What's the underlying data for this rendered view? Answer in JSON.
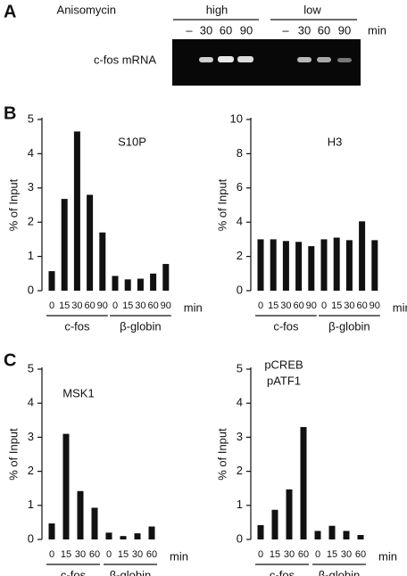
{
  "panel_labels": [
    "A",
    "B",
    "C"
  ],
  "gel": {
    "treatment": "Anisomycin",
    "conditions": [
      {
        "name": "high",
        "lanes": [
          "–",
          "30",
          "60",
          "90"
        ]
      },
      {
        "name": "low",
        "lanes": [
          "–",
          "30",
          "60",
          "90"
        ]
      }
    ],
    "unit": "min",
    "row_label": "c-fos mRNA"
  },
  "chart_data": [
    {
      "type": "bar",
      "title": "S10P",
      "ylabel": "% of Input",
      "x_unit": "min",
      "color": "#111111",
      "ylim": [
        0,
        5
      ],
      "yticks": [
        0,
        1,
        2,
        3,
        4,
        5
      ],
      "groups": [
        {
          "name": "c-fos",
          "categories": [
            "0",
            "15",
            "30",
            "60",
            "90"
          ],
          "values": [
            0.57,
            2.68,
            4.65,
            2.8,
            1.7
          ]
        },
        {
          "name": "β-globin",
          "categories": [
            "0",
            "15",
            "30",
            "60",
            "90"
          ],
          "values": [
            0.43,
            0.33,
            0.35,
            0.5,
            0.78
          ]
        }
      ]
    },
    {
      "type": "bar",
      "title": "H3",
      "ylabel": "% of Input",
      "x_unit": "min",
      "color": "#111111",
      "ylim": [
        0,
        10
      ],
      "yticks": [
        0,
        2,
        4,
        6,
        8,
        10
      ],
      "groups": [
        {
          "name": "c-fos",
          "categories": [
            "0",
            "15",
            "30",
            "60",
            "90"
          ],
          "values": [
            3.0,
            3.0,
            2.9,
            2.85,
            2.6
          ]
        },
        {
          "name": "β-globin",
          "categories": [
            "0",
            "15",
            "30",
            "60",
            "90"
          ],
          "values": [
            3.0,
            3.1,
            2.95,
            4.05,
            2.95
          ]
        }
      ]
    },
    {
      "type": "bar",
      "title": "MSK1",
      "ylabel": "% of Input",
      "x_unit": "min",
      "color": "#111111",
      "ylim": [
        0,
        5
      ],
      "yticks": [
        0,
        1,
        2,
        3,
        4,
        5
      ],
      "groups": [
        {
          "name": "c-fos",
          "categories": [
            "0",
            "15",
            "30",
            "60"
          ],
          "values": [
            0.47,
            3.1,
            1.42,
            0.93
          ]
        },
        {
          "name": "β-globin",
          "categories": [
            "0",
            "15",
            "30",
            "60"
          ],
          "values": [
            0.2,
            0.1,
            0.18,
            0.38
          ]
        }
      ]
    },
    {
      "type": "bar",
      "title": [
        "pCREB",
        "pATF1"
      ],
      "ylabel": "% of Input",
      "x_unit": "min",
      "color": "#111111",
      "ylim": [
        0,
        5
      ],
      "yticks": [
        0,
        1,
        2,
        3,
        4,
        5
      ],
      "groups": [
        {
          "name": "c-fos",
          "categories": [
            "0",
            "15",
            "30",
            "60"
          ],
          "values": [
            0.42,
            0.87,
            1.47,
            3.3
          ]
        },
        {
          "name": "β-globin",
          "categories": [
            "0",
            "15",
            "30",
            "60"
          ],
          "values": [
            0.25,
            0.4,
            0.25,
            0.13
          ]
        }
      ]
    }
  ]
}
